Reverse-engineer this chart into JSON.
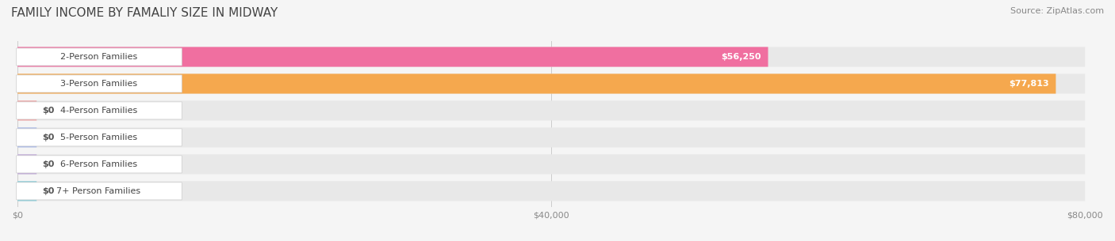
{
  "title": "FAMILY INCOME BY FAMALIY SIZE IN MIDWAY",
  "source": "Source: ZipAtlas.com",
  "categories": [
    "2-Person Families",
    "3-Person Families",
    "4-Person Families",
    "5-Person Families",
    "6-Person Families",
    "7+ Person Families"
  ],
  "values": [
    56250,
    77813,
    0,
    0,
    0,
    0
  ],
  "bar_colors": [
    "#f06fa0",
    "#f5a84e",
    "#f0a0a0",
    "#a8b8e8",
    "#c0a8d8",
    "#88ccd8"
  ],
  "label_colors": [
    "#f06fa0",
    "#f5a84e",
    "#f0a0a0",
    "#a8b8e8",
    "#c0a8d8",
    "#88ccd8"
  ],
  "value_labels": [
    "$56,250",
    "$77,813",
    "$0",
    "$0",
    "$0",
    "$0"
  ],
  "xlim": [
    0,
    80000
  ],
  "xticks": [
    0,
    40000,
    80000
  ],
  "xtick_labels": [
    "$0",
    "$40,000",
    "$80,000"
  ],
  "background_color": "#f5f5f5",
  "bar_background_color": "#e8e8e8",
  "title_fontsize": 11,
  "source_fontsize": 8,
  "label_fontsize": 8,
  "value_fontsize": 8
}
